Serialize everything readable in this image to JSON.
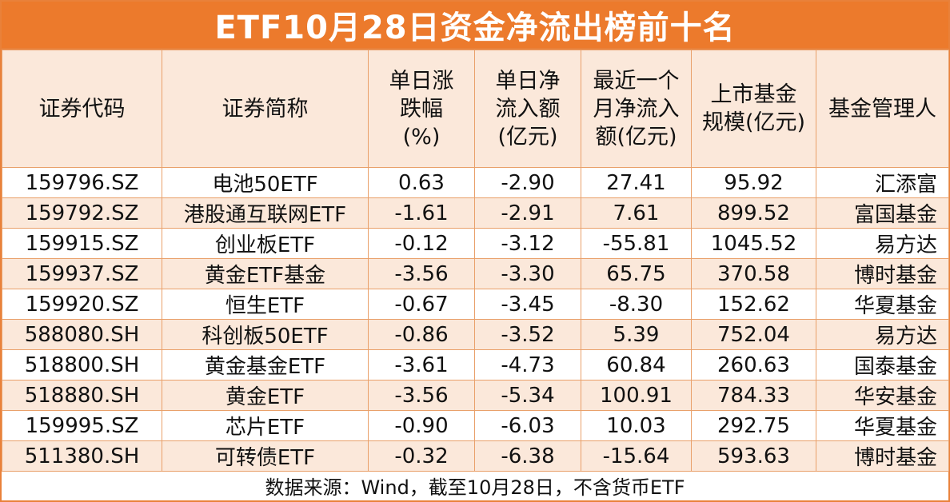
{
  "title": "ETF10月28日资金净流出榜前十名",
  "headers": [
    [
      "证券代码"
    ],
    [
      "证券简称"
    ],
    [
      "单日涨",
      "跌幅",
      "(%)"
    ],
    [
      "单日净",
      "流入额",
      "(亿元)"
    ],
    [
      "最近一个",
      "月净流入",
      "额(亿元)"
    ],
    [
      "上市基金",
      "规模(亿元)"
    ],
    [
      "基金管理人"
    ]
  ],
  "rows": [
    [
      "159796.SZ",
      "电池50ETF",
      "0.63",
      "-2.90",
      "27.41",
      "95.92",
      "汇添富"
    ],
    [
      "159792.SZ",
      "港股通互联网ETF",
      "-1.61",
      "-2.91",
      "7.61",
      "899.52",
      "富国基金"
    ],
    [
      "159915.SZ",
      "创业板ETF",
      "-0.12",
      "-3.12",
      "-55.81",
      "1045.52",
      "易方达"
    ],
    [
      "159937.SZ",
      "黄金ETF基金",
      "-3.56",
      "-3.30",
      "65.75",
      "370.58",
      "博时基金"
    ],
    [
      "159920.SZ",
      "恒生ETF",
      "-0.67",
      "-3.45",
      "-8.30",
      "152.62",
      "华夏基金"
    ],
    [
      "588080.SH",
      "科创板50ETF",
      "-0.86",
      "-3.52",
      "5.39",
      "752.04",
      "易方达"
    ],
    [
      "518800.SH",
      "黄金基金ETF",
      "-3.61",
      "-4.73",
      "60.84",
      "260.63",
      "国泰基金"
    ],
    [
      "518880.SH",
      "黄金ETF",
      "-3.56",
      "-5.34",
      "100.91",
      "784.33",
      "华安基金"
    ],
    [
      "159995.SZ",
      "芯片ETF",
      "-0.90",
      "-6.03",
      "10.03",
      "292.75",
      "华夏基金"
    ],
    [
      "511380.SH",
      "可转债ETF",
      "-0.32",
      "-6.38",
      "-15.64",
      "593.63",
      "博时基金"
    ]
  ],
  "footer": "数据来源：Wind，截至10月28日，不含货币ETF",
  "colors": {
    "title_bg": "#ec7a2c",
    "stripe": "#fbe8da",
    "border": "#e9a06a"
  }
}
